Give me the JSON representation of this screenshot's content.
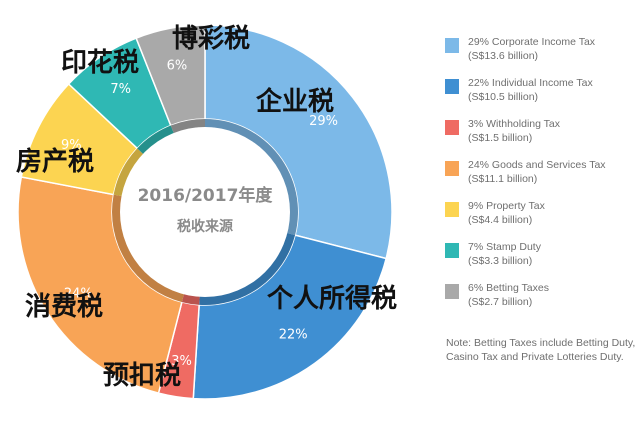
{
  "chart_data": {
    "type": "pie",
    "center_title": "2016/2017年度",
    "center_subtitle": "税收来源",
    "slices": [
      {
        "label": "企业税",
        "percent": 29,
        "percent_label": "29%",
        "color": "#7cb9e8",
        "legend_line1": "29% Corporate Income Tax",
        "legend_line2": "(S$13.6 billion)"
      },
      {
        "label": "个人所得税",
        "percent": 22,
        "percent_label": "22%",
        "color": "#3f8fd2",
        "legend_line1": "22% Individual Income Tax",
        "legend_line2": "(S$10.5 billion)"
      },
      {
        "label": "预扣税",
        "percent": 3,
        "percent_label": "3%",
        "color": "#ef6b63",
        "legend_line1": "3% Withholding Tax",
        "legend_line2": "(S$1.5 billion)"
      },
      {
        "label": "消费税",
        "percent": 24,
        "percent_label": "24%",
        "color": "#f8a456",
        "legend_line1": "24% Goods and Services Tax",
        "legend_line2": "(S$11.1 billion)"
      },
      {
        "label": "房产税",
        "percent": 9,
        "percent_label": "9%",
        "color": "#fcd451",
        "legend_line1": "9% Property Tax",
        "legend_line2": "(S$4.4 billion)"
      },
      {
        "label": "印花税",
        "percent": 7,
        "percent_label": "7%",
        "color": "#2fb8b4",
        "legend_line1": "7% Stamp Duty",
        "legend_line2": "(S$3.3 billion)"
      },
      {
        "label": "博彩税",
        "percent": 6,
        "percent_label": "6%",
        "color": "#a9a9a9",
        "legend_line1": "6% Betting Taxes",
        "legend_line2": "(S$2.7 billion)"
      }
    ],
    "note": "Note: Betting Taxes include Betting Duty, Casino Tax and Private Lotteries Duty."
  }
}
